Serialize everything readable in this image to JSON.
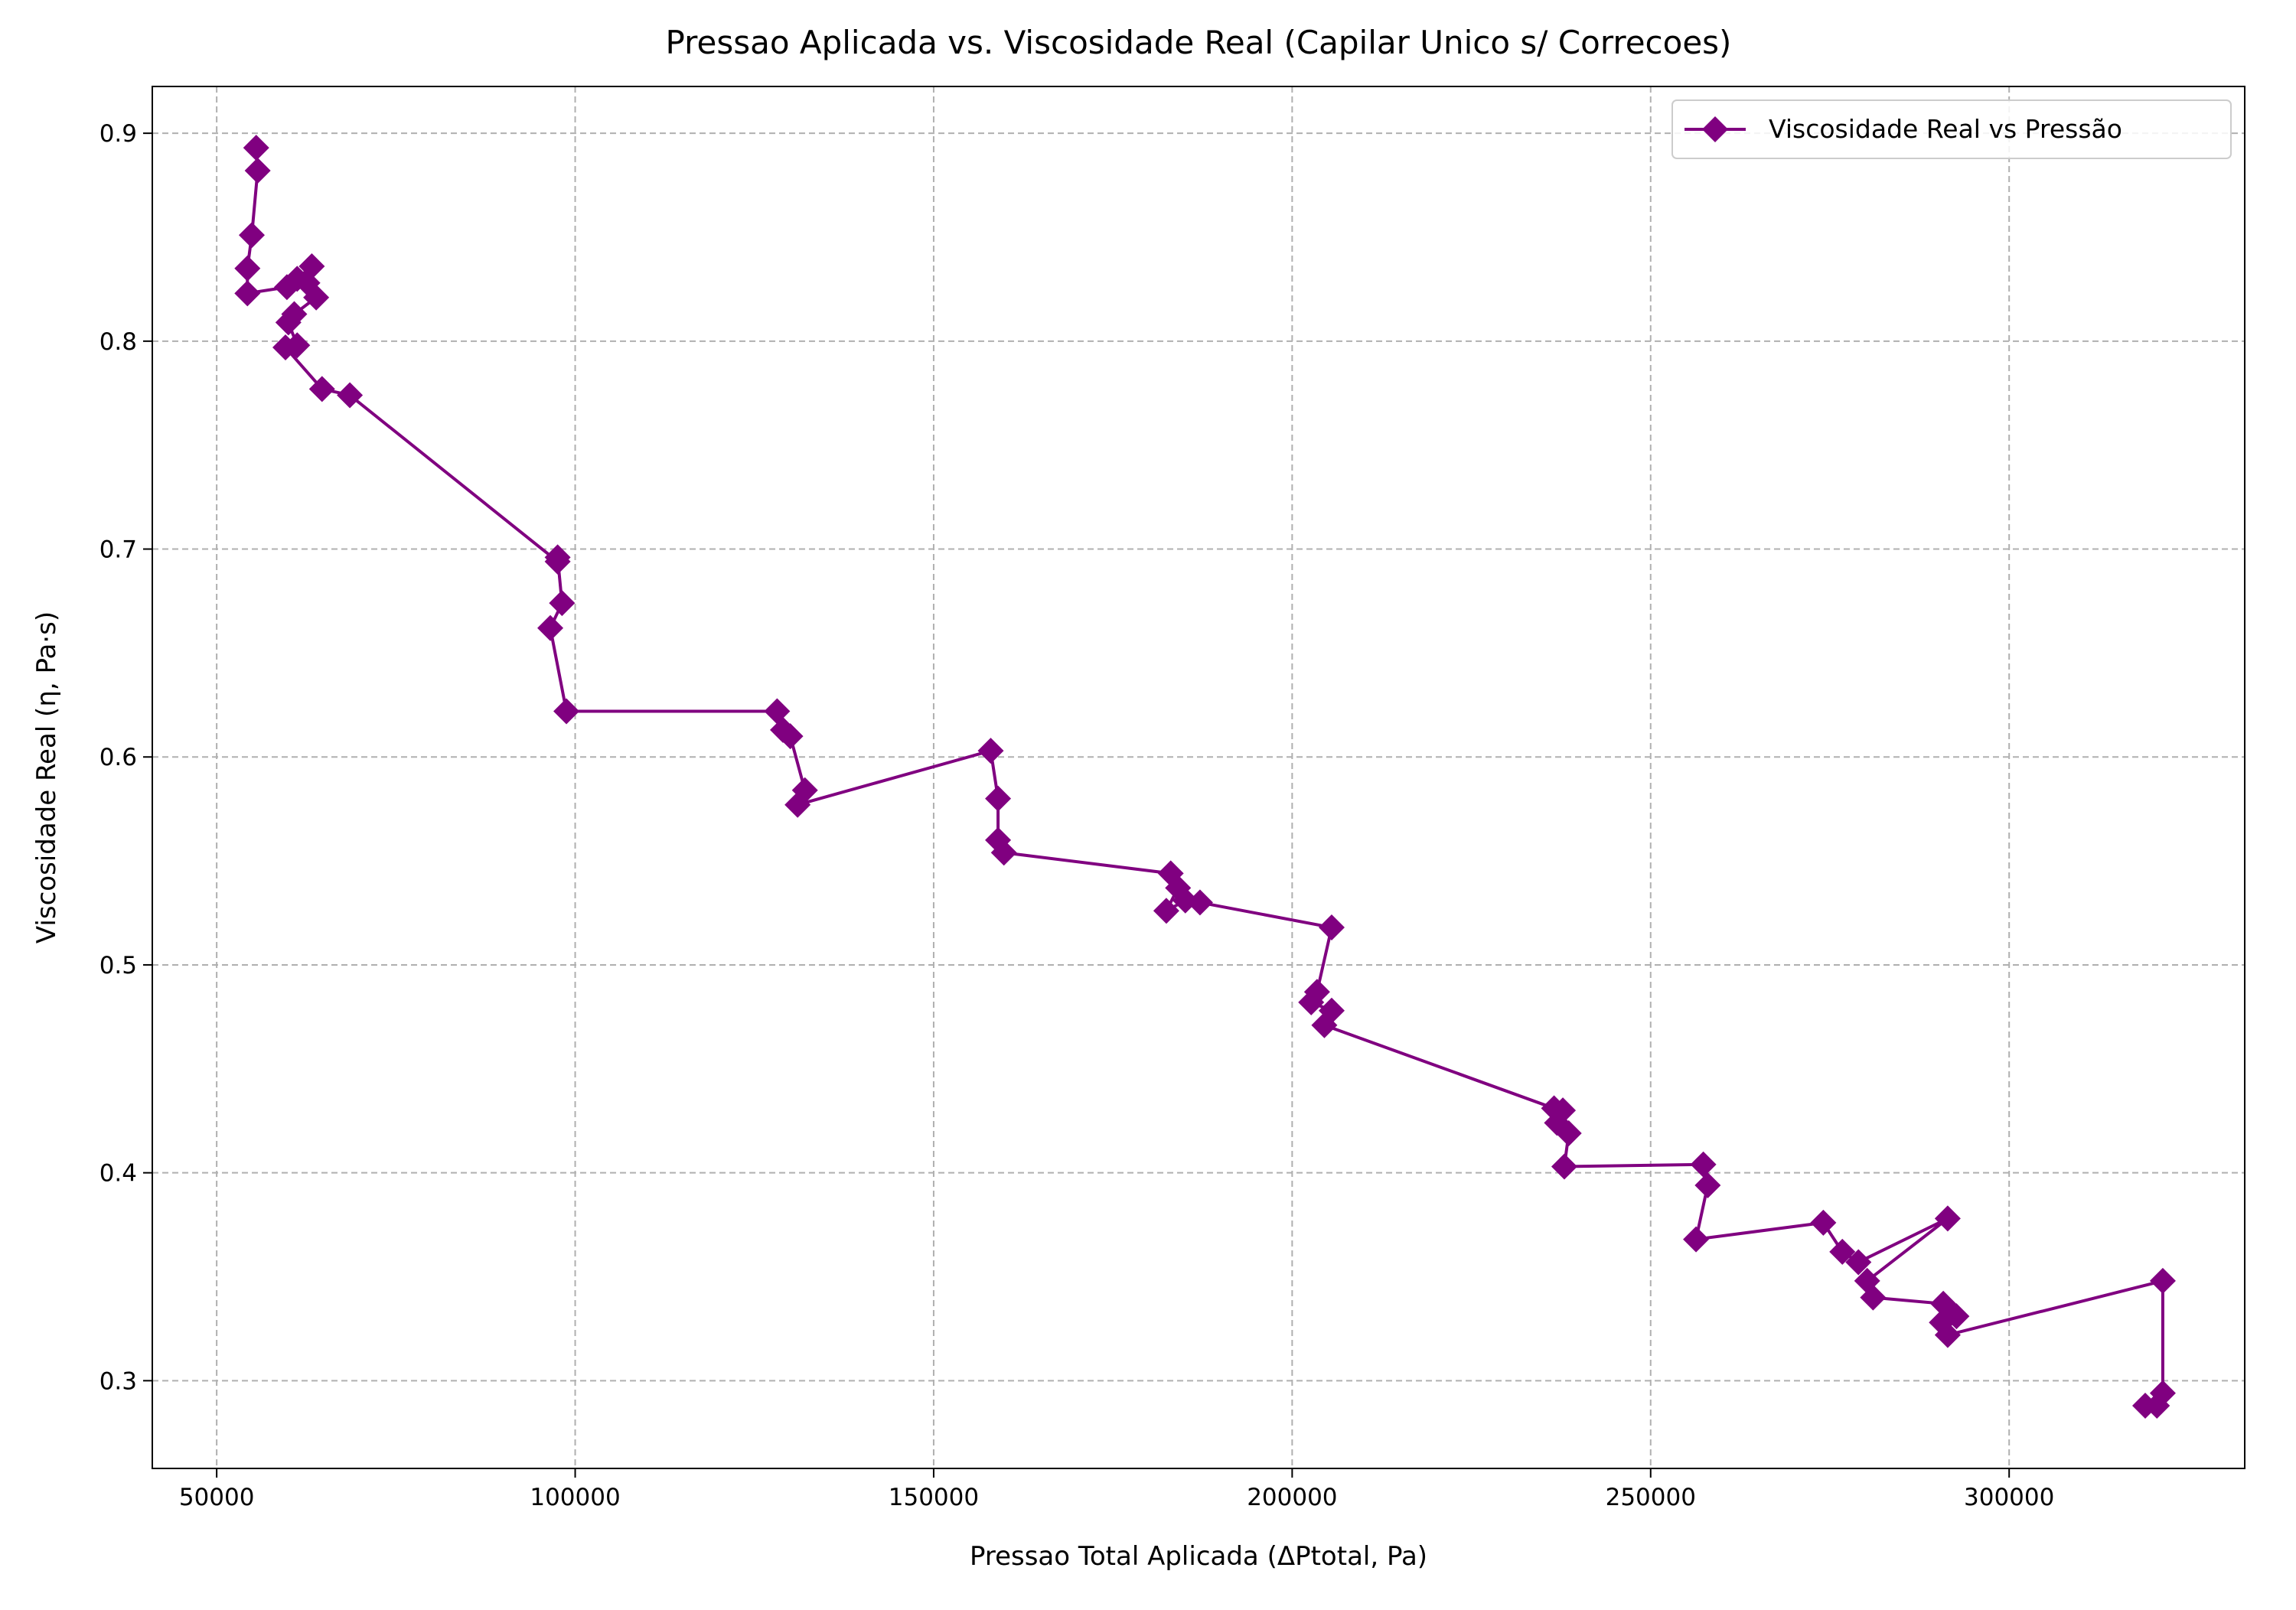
{
  "chart_data": {
    "type": "line",
    "title": "Pressao Aplicada vs. Viscosidade Real (Capilar Unico s/ Correcoes)",
    "x_label": "Pressao Total Aplicada (ΔPtotal, Pa)",
    "y_label": "Viscosidade Real (η, Pa·s)",
    "xlim": [
      41020,
      332857
    ],
    "ylim": [
      0.2578,
      0.9225
    ],
    "xticks": [
      50000,
      100000,
      150000,
      200000,
      250000,
      300000
    ],
    "yticks": [
      0.3,
      0.4,
      0.5,
      0.6,
      0.7,
      0.8,
      0.9
    ],
    "grid": true,
    "legend": "upper right",
    "series": [
      {
        "name": "Viscosidade Real vs Pressão",
        "color": "#800080",
        "marker": "diamond",
        "x": [
          55510,
          55714,
          54898,
          54286,
          54286,
          59796,
          61224,
          63265,
          62653,
          63878,
          60816,
          60000,
          61224,
          59592,
          64694,
          68571,
          97551,
          97551,
          98163,
          96531,
          98776,
          128163,
          128980,
          130000,
          132041,
          131020,
          157959,
          158980,
          158980,
          159796,
          183061,
          184082,
          182449,
          185102,
          187143,
          205510,
          203469,
          202653,
          205510,
          204490,
          236531,
          237755,
          236939,
          238571,
          237959,
          257347,
          257959,
          256327,
          274082,
          276735,
          278980,
          291429,
          280204,
          281020,
          290816,
          292653,
          290612,
          291429,
          321429,
          321429,
          318980,
          320612
        ],
        "values": [
          0.893,
          0.882,
          0.851,
          0.835,
          0.823,
          0.826,
          0.83,
          0.836,
          0.828,
          0.821,
          0.813,
          0.809,
          0.798,
          0.797,
          0.777,
          0.774,
          0.694,
          0.696,
          0.674,
          0.662,
          0.622,
          0.622,
          0.613,
          0.61,
          0.584,
          0.577,
          0.603,
          0.58,
          0.56,
          0.554,
          0.544,
          0.537,
          0.526,
          0.531,
          0.53,
          0.518,
          0.487,
          0.482,
          0.478,
          0.471,
          0.431,
          0.43,
          0.424,
          0.419,
          0.403,
          0.404,
          0.394,
          0.368,
          0.376,
          0.362,
          0.357,
          0.378,
          0.348,
          0.34,
          0.337,
          0.331,
          0.328,
          0.322,
          0.348,
          0.294,
          0.288,
          0.288
        ]
      }
    ]
  }
}
